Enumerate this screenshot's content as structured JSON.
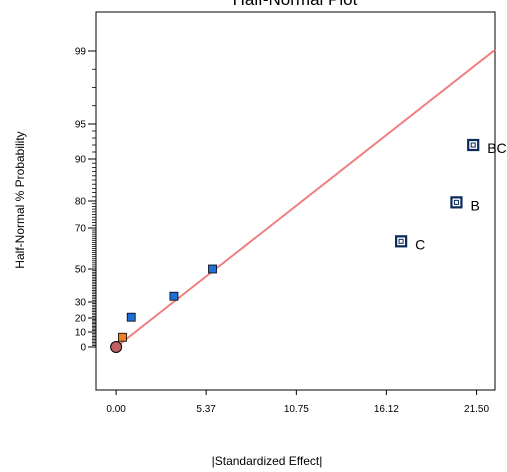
{
  "chart_data": {
    "type": "scatter",
    "title": "Half-Normal Plot",
    "xlabel": "|Standardized Effect|",
    "ylabel": "Half-Normal % Probability",
    "xlim": [
      -1.2,
      22.6
    ],
    "x_ticks": [
      0.0,
      5.37,
      10.75,
      16.12,
      21.5
    ],
    "x_tick_labels": [
      "0.00",
      "5.37",
      "10.75",
      "16.12",
      "21.50"
    ],
    "y_scale": "half-normal probability",
    "y_ticks": [
      0,
      10,
      20,
      30,
      50,
      70,
      80,
      90,
      95,
      99
    ],
    "y_tick_labels": [
      "0",
      "10",
      "20",
      "30",
      "50",
      "70",
      "80",
      "90",
      "95",
      "99"
    ],
    "grid": false,
    "reference_line": {
      "color": "#f08080",
      "from": {
        "x": 0.0,
        "y": 0.0
      },
      "to": {
        "x": 22.6,
        "y": 99.2
      }
    },
    "points": [
      {
        "x": 0.0,
        "y": 0.0,
        "shape": "circle",
        "color": "#c06060",
        "label": ""
      },
      {
        "x": 0.38,
        "y": 6.5,
        "shape": "square",
        "color": "#f08020",
        "label": ""
      },
      {
        "x": 0.9,
        "y": 20.5,
        "shape": "square",
        "color": "#1f6fd8",
        "label": ""
      },
      {
        "x": 3.45,
        "y": 33.5,
        "shape": "square",
        "color": "#1f6fd8",
        "label": ""
      },
      {
        "x": 5.75,
        "y": 50.0,
        "shape": "square",
        "color": "#1f6fd8",
        "label": ""
      },
      {
        "x": 17.0,
        "y": 63.5,
        "shape": "square-open",
        "color": "#0a2a5a",
        "label": "C"
      },
      {
        "x": 20.3,
        "y": 79.5,
        "shape": "square-open",
        "color": "#0a2a5a",
        "label": "B"
      },
      {
        "x": 21.3,
        "y": 92.0,
        "shape": "square-open",
        "color": "#0a2a5a",
        "label": "BC"
      }
    ]
  }
}
